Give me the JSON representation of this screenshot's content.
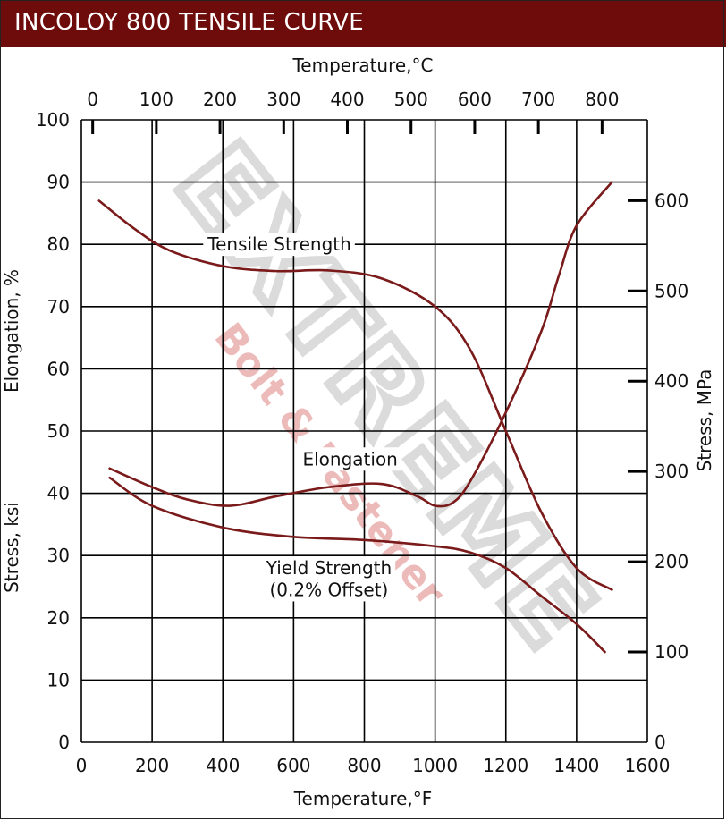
{
  "title": "INCOLOY 800 TENSILE CURVE",
  "watermark": {
    "brand": "EXTREME",
    "tagline": "Bolt & Fastener"
  },
  "colors": {
    "title_bg": "#6e0b0b",
    "curve": "#7a1a1a",
    "grid": "#000000",
    "watermark": "#b0b0b0",
    "watermark_tag": "#e8a3a3"
  },
  "chart_data": {
    "type": "line",
    "title": "INCOLOY 800 TENSILE CURVE",
    "x_bottom": {
      "label": "Temperature,°F",
      "range": [
        0,
        1600
      ],
      "ticks": [
        0,
        200,
        400,
        600,
        800,
        1000,
        1200,
        1400,
        1600
      ]
    },
    "x_top": {
      "label": "Temperature,°C",
      "ticks": [
        0,
        100,
        200,
        300,
        400,
        500,
        600,
        700,
        800
      ]
    },
    "y_left": {
      "label": "Elongation, %",
      "range": [
        0,
        100
      ],
      "ticks": [
        0,
        10,
        20,
        30,
        40,
        50,
        60,
        70,
        80,
        90,
        100
      ]
    },
    "y_left_secondary_label": "Stress, ksi",
    "y_right": {
      "label": "Stress, MPa",
      "ticks": [
        0,
        100,
        200,
        300,
        400,
        500,
        600
      ]
    },
    "grid": true,
    "series": [
      {
        "name": "Tensile Strength",
        "x": [
          50,
          150,
          250,
          400,
          550,
          700,
          850,
          1000,
          1100,
          1200,
          1300,
          1400,
          1500
        ],
        "y": [
          87,
          82.5,
          79,
          76.5,
          75.7,
          75.8,
          74.5,
          70,
          63,
          50,
          37,
          28,
          24.5
        ]
      },
      {
        "name": "Elongation",
        "x": [
          80,
          200,
          300,
          420,
          550,
          700,
          850,
          950,
          1000,
          1050,
          1100,
          1200,
          1300,
          1350,
          1400,
          1500
        ],
        "y": [
          44,
          41,
          39,
          38,
          39.5,
          41,
          41.5,
          39.5,
          38,
          38.5,
          42,
          53,
          66,
          75,
          83,
          90
        ]
      },
      {
        "name": "Yield Strength (0.2% Offset)",
        "x": [
          80,
          200,
          400,
          600,
          800,
          1000,
          1100,
          1200,
          1300,
          1400,
          1480
        ],
        "y": [
          42.5,
          38,
          34.5,
          33,
          32.5,
          31.5,
          30.5,
          28,
          23.5,
          19,
          14.5
        ]
      }
    ],
    "annotations": [
      {
        "text": "Tensile Strength",
        "x": 560,
        "y": 79
      },
      {
        "text": "Elongation",
        "x": 760,
        "y": 44.5
      },
      {
        "text": "Yield Strength",
        "x": 700,
        "y": 27
      },
      {
        "text": "(0.2% Offset)",
        "x": 700,
        "y": 23.5
      }
    ]
  }
}
